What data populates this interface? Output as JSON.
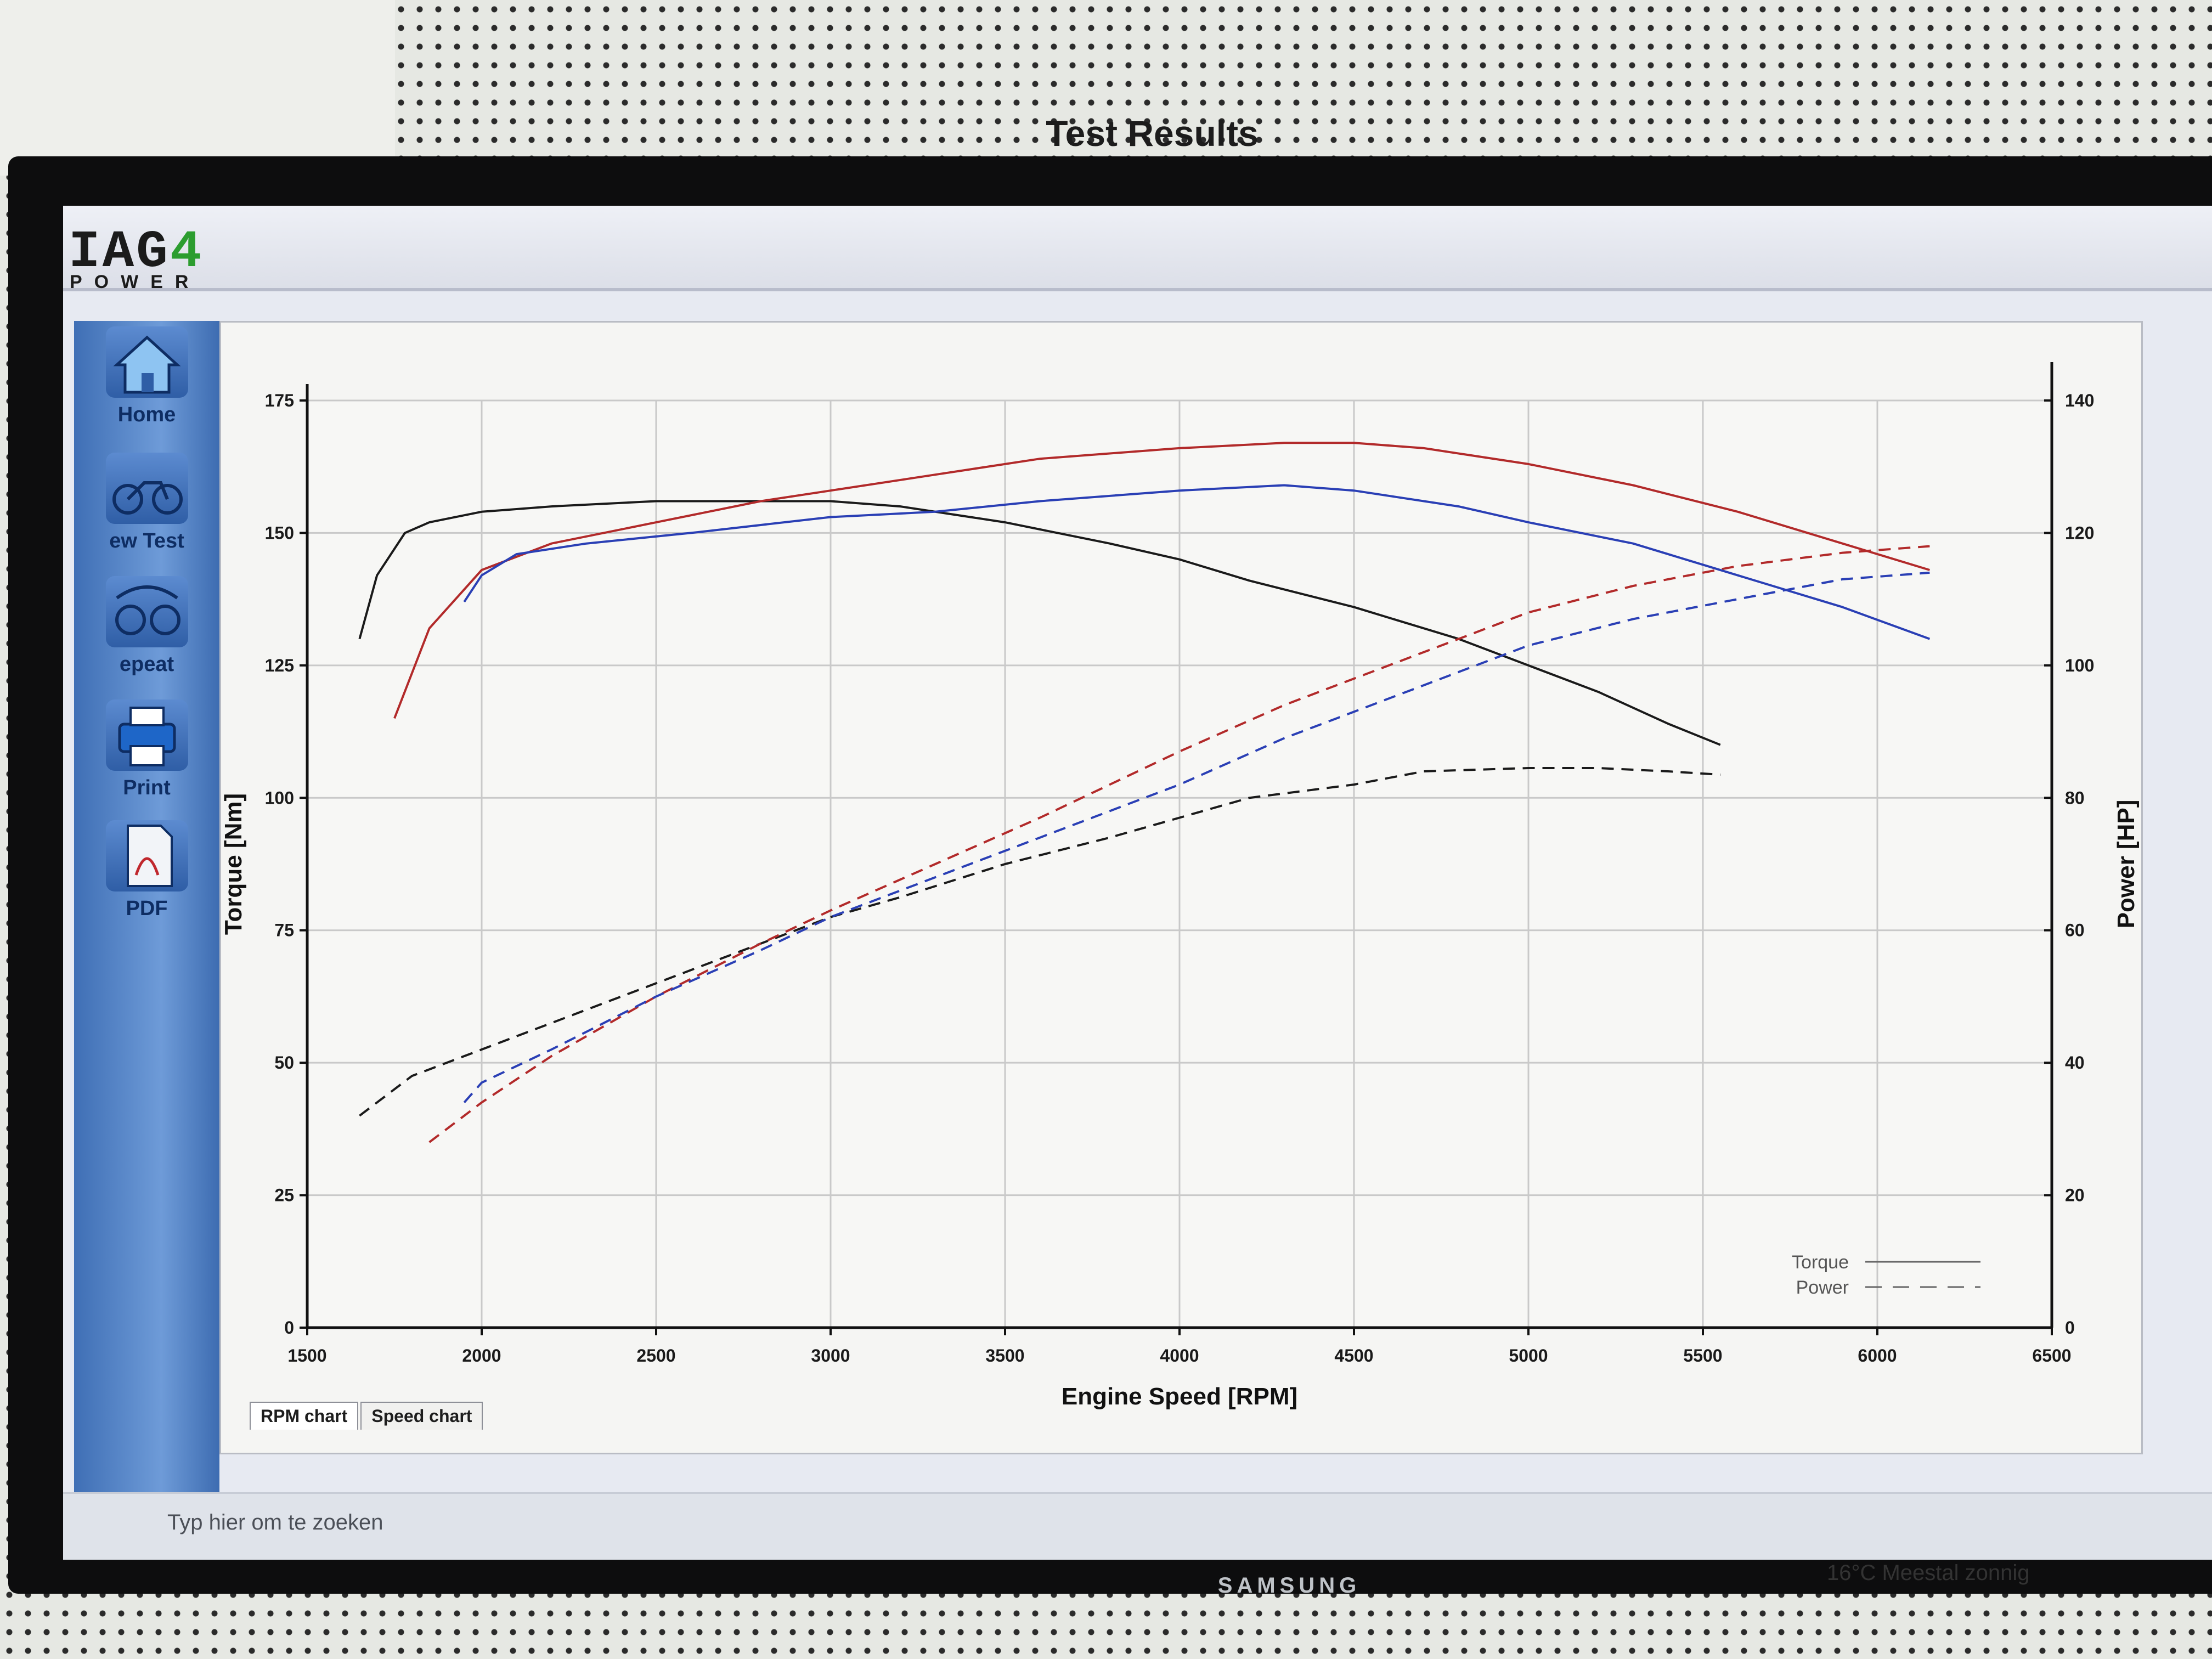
{
  "app": {
    "logo_text_a": "IAG",
    "logo_text_b": "4",
    "logo_sub": "POWER"
  },
  "sidebar": {
    "items": [
      {
        "label": "Home",
        "icon": "home-icon"
      },
      {
        "label": "ew Test",
        "icon": "motorcycle-icon"
      },
      {
        "label": "epeat",
        "icon": "repeat-motorcycle-icon"
      },
      {
        "label": "Print",
        "icon": "printer-icon"
      },
      {
        "label": "PDF",
        "icon": "pdf-icon"
      }
    ]
  },
  "tabs": [
    "RPM chart",
    "Speed chart"
  ],
  "monitor": {
    "brand": "SAMSUNG"
  },
  "taskbar": {
    "search_placeholder": "Typ hier om te zoeken",
    "weather": "16°C  Meestal zonnig"
  },
  "chart_data": {
    "type": "line",
    "title": "Test Results",
    "xlabel": "Engine Speed [RPM]",
    "ylabel_left": "Torque [Nm]",
    "ylabel_right": "Power [HP]",
    "xlim": [
      1500,
      6500
    ],
    "ylim_left": [
      0,
      175
    ],
    "ylim_right": [
      0,
      140
    ],
    "xticks": [
      1500,
      2000,
      2500,
      3000,
      3500,
      4000,
      4500,
      5000,
      5500,
      6000,
      6500
    ],
    "yticks_left": [
      0,
      25,
      50,
      75,
      100,
      125,
      150,
      175
    ],
    "yticks_right": [
      0,
      20,
      40,
      60,
      80,
      100,
      120,
      140
    ],
    "grid": true,
    "legend_position": "bottom-right",
    "legend": [
      {
        "label": "Torque",
        "style": "solid"
      },
      {
        "label": "Power",
        "style": "dashed"
      }
    ],
    "series": [
      {
        "color": "#1a1a1a",
        "quantity": "torque",
        "axis": "left",
        "x": [
          1650,
          1700,
          1780,
          1850,
          2000,
          2200,
          2500,
          2800,
          3000,
          3200,
          3500,
          3800,
          4000,
          4200,
          4500,
          4800,
          5000,
          5200,
          5400,
          5550
        ],
        "y": [
          130,
          142,
          150,
          152,
          154,
          155,
          156,
          156,
          156,
          155,
          152,
          148,
          145,
          141,
          136,
          130,
          125,
          120,
          114,
          110
        ]
      },
      {
        "color": "#1a1a1a",
        "quantity": "power",
        "axis": "right",
        "x": [
          1650,
          1800,
          2000,
          2200,
          2500,
          2800,
          3000,
          3200,
          3500,
          3800,
          4000,
          4200,
          4500,
          4700,
          5000,
          5200,
          5400,
          5550
        ],
        "y": [
          32,
          38,
          42,
          46,
          52,
          58,
          62,
          65,
          70,
          74,
          77,
          80,
          82,
          84,
          84.5,
          84.5,
          84,
          83.5
        ]
      },
      {
        "color": "#b22a2a",
        "quantity": "torque",
        "axis": "left",
        "x": [
          1750,
          1850,
          2000,
          2200,
          2500,
          2800,
          3000,
          3300,
          3600,
          4000,
          4300,
          4500,
          4700,
          5000,
          5300,
          5600,
          5900,
          6150
        ],
        "y": [
          115,
          132,
          143,
          148,
          152,
          156,
          158,
          161,
          164,
          166,
          167,
          167,
          166,
          163,
          159,
          154,
          148,
          143
        ]
      },
      {
        "color": "#b22a2a",
        "quantity": "power",
        "axis": "right",
        "x": [
          1850,
          2000,
          2200,
          2500,
          2800,
          3000,
          3300,
          3600,
          4000,
          4300,
          4500,
          4800,
          5000,
          5300,
          5600,
          5900,
          6150
        ],
        "y": [
          28,
          34,
          41,
          50,
          58,
          63,
          70,
          77,
          87,
          94,
          98,
          104,
          108,
          112,
          115,
          117,
          118
        ]
      },
      {
        "color": "#2a3fb5",
        "quantity": "torque",
        "axis": "left",
        "x": [
          1950,
          2000,
          2100,
          2300,
          2600,
          3000,
          3300,
          3600,
          4000,
          4300,
          4500,
          4800,
          5000,
          5300,
          5600,
          5900,
          6150
        ],
        "y": [
          137,
          142,
          146,
          148,
          150,
          153,
          154,
          156,
          158,
          159,
          158,
          155,
          152,
          148,
          142,
          136,
          130
        ]
      },
      {
        "color": "#2a3fb5",
        "quantity": "power",
        "axis": "right",
        "x": [
          1950,
          2000,
          2200,
          2500,
          2800,
          3000,
          3300,
          3600,
          4000,
          4300,
          4500,
          4800,
          5000,
          5300,
          5600,
          5900,
          6150
        ],
        "y": [
          34,
          37,
          42,
          50,
          57,
          62,
          68,
          74,
          82,
          89,
          93,
          99,
          103,
          107,
          110,
          113,
          114
        ]
      }
    ]
  }
}
